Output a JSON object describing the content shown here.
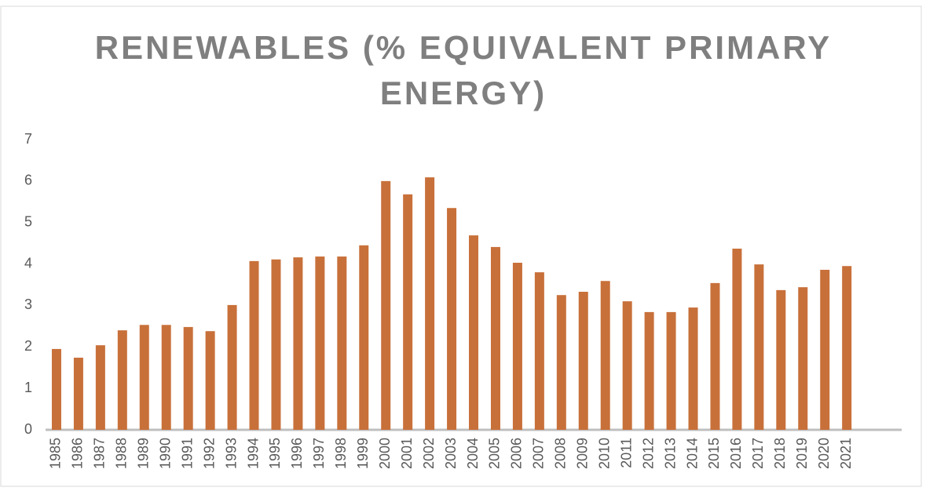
{
  "chart_data": {
    "type": "bar",
    "title": "RENEWABLES (% EQUIVALENT PRIMARY ENERGY)",
    "categories": [
      "1985",
      "1986",
      "1987",
      "1988",
      "1989",
      "1990",
      "1991",
      "1992",
      "1993",
      "1994",
      "1995",
      "1996",
      "1997",
      "1998",
      "1999",
      "2000",
      "2001",
      "2002",
      "2003",
      "2004",
      "2005",
      "2006",
      "2007",
      "2008",
      "2009",
      "2010",
      "2011",
      "2012",
      "2013",
      "2014",
      "2015",
      "2016",
      "2017",
      "2018",
      "2019",
      "2020",
      "2021"
    ],
    "values": [
      1.95,
      1.74,
      2.04,
      2.4,
      2.53,
      2.53,
      2.48,
      2.38,
      3.01,
      4.07,
      4.11,
      4.16,
      4.18,
      4.18,
      4.45,
      6.0,
      5.68,
      6.09,
      5.35,
      4.69,
      4.41,
      4.03,
      3.8,
      3.25,
      3.33,
      3.59,
      3.1,
      2.84,
      2.84,
      2.95,
      3.54,
      4.37,
      3.99,
      3.37,
      3.44,
      3.86,
      3.95
    ],
    "color": "#c8703a",
    "ylim": [
      0,
      7
    ],
    "yticks": [
      0,
      1,
      2,
      3,
      4,
      5,
      6,
      7
    ],
    "grid": false
  }
}
